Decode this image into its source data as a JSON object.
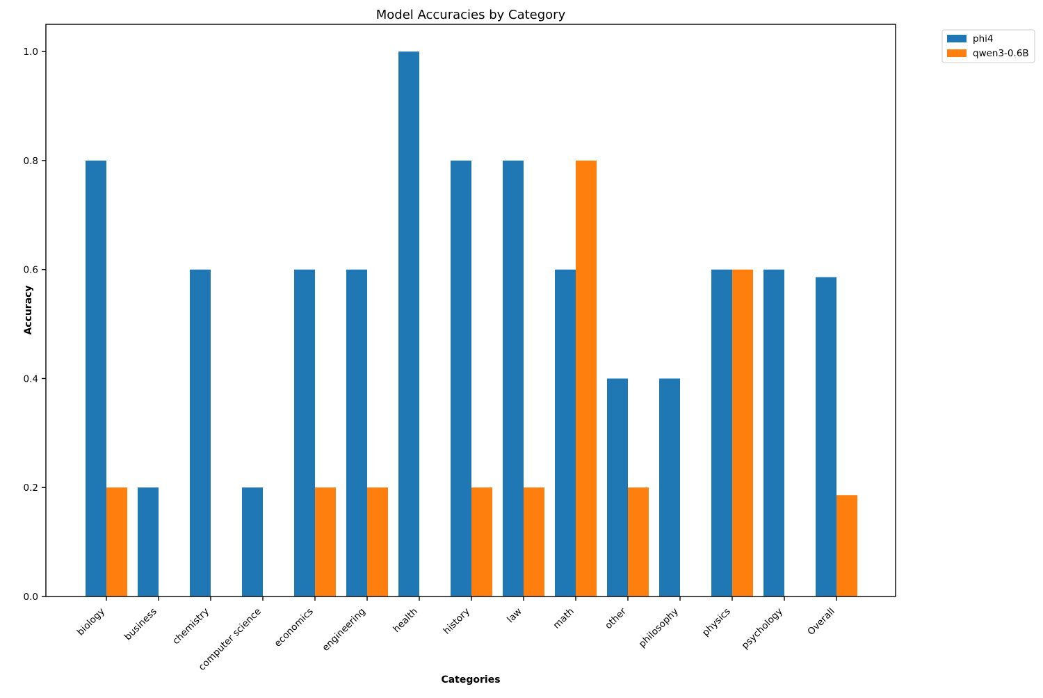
{
  "figure": {
    "background": "#ffffff"
  },
  "chart_data": {
    "type": "bar",
    "title": "Model Accuracies by Category",
    "xlabel": "Categories",
    "ylabel": "Accuracy",
    "categories": [
      "biology",
      "business",
      "chemistry",
      "computer science",
      "economics",
      "engineering",
      "health",
      "history",
      "law",
      "math",
      "other",
      "philosophy",
      "physics",
      "psychology",
      "Overall"
    ],
    "series": [
      {
        "name": "phi4",
        "color": "#1f77b4",
        "values": [
          0.8,
          0.2,
          0.6,
          0.2,
          0.6,
          0.6,
          1.0,
          0.8,
          0.8,
          0.6,
          0.4,
          0.4,
          0.6,
          0.6,
          0.586
        ]
      },
      {
        "name": "qwen3-0.6B",
        "color": "#ff7f0e",
        "values": [
          0.2,
          0.0,
          0.0,
          0.0,
          0.2,
          0.2,
          0.0,
          0.2,
          0.2,
          0.8,
          0.2,
          0.0,
          0.6,
          0.0,
          0.186
        ]
      }
    ],
    "ylim": [
      0,
      1.05
    ],
    "yticks": [
      0.0,
      0.2,
      0.4,
      0.6,
      0.8,
      1.0
    ],
    "grid": false,
    "legend_position": "outside upper right",
    "x_tick_rotation": 45,
    "bar_group_mode": "grouped"
  }
}
